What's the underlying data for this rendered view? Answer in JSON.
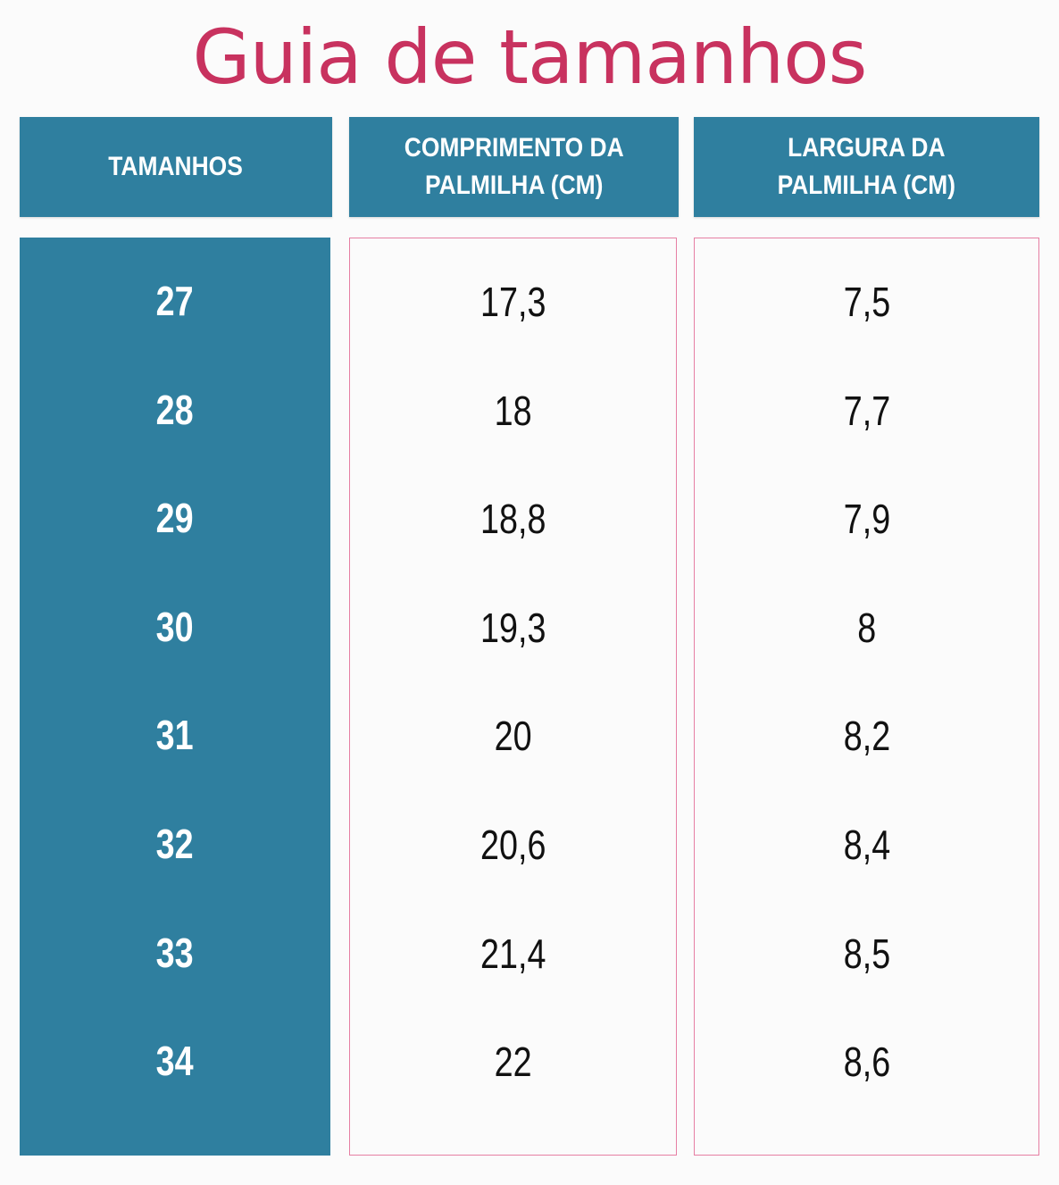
{
  "title": "Guia de tamanhos",
  "headers": {
    "sizes": "TAMANHOS",
    "length_line1": "COMPRIMENTO DA",
    "length_line2": "PALMILHA (CM)",
    "width_line1": "LARGURA DA",
    "width_line2": "PALMILHA (CM)"
  },
  "colors": {
    "title": "#c8325f",
    "header_bg": "#2f7f9f",
    "border": "#e67fa3"
  },
  "rows": [
    {
      "size": "27",
      "length": "17,3",
      "width": "7,5"
    },
    {
      "size": "28",
      "length": "18",
      "width": "7,7"
    },
    {
      "size": "29",
      "length": "18,8",
      "width": "7,9"
    },
    {
      "size": "30",
      "length": "19,3",
      "width": "8"
    },
    {
      "size": "31",
      "length": "20",
      "width": "8,2"
    },
    {
      "size": "32",
      "length": "20,6",
      "width": "8,4"
    },
    {
      "size": "33",
      "length": "21,4",
      "width": "8,5"
    },
    {
      "size": "34",
      "length": "22",
      "width": "8,6"
    }
  ]
}
